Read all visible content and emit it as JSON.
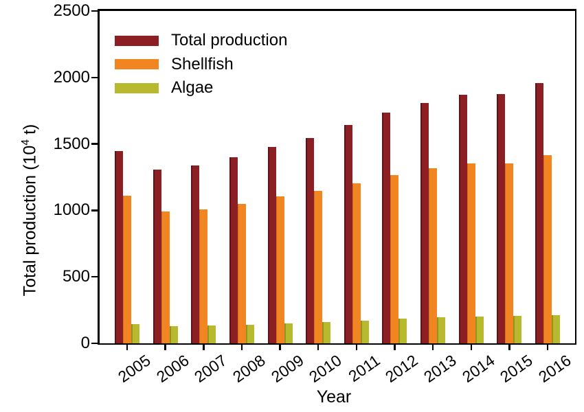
{
  "chart_data": {
    "type": "bar",
    "title": "",
    "xlabel": "Year",
    "ylabel": "Total production (10⁴ t)",
    "ylabel_parts": {
      "prefix": "Total production (10",
      "superscript": "4",
      "suffix": " t)"
    },
    "ylim": [
      0,
      2500
    ],
    "yticks": [
      "0",
      "500",
      "1000",
      "1500",
      "2000",
      "2500"
    ],
    "grid": false,
    "legend_position": "top-left-inside",
    "categories": [
      "2005",
      "2006",
      "2007",
      "2008",
      "2009",
      "2010",
      "2011",
      "2012",
      "2013",
      "2014",
      "2015",
      "2016"
    ],
    "series": [
      {
        "name": "Total production",
        "color": "#8B1F24",
        "values": [
          1445,
          1305,
          1340,
          1400,
          1475,
          1545,
          1640,
          1735,
          1810,
          1870,
          1873,
          1960
        ]
      },
      {
        "name": "Shellfish",
        "color": "#F18521",
        "values": [
          1110,
          992,
          1005,
          1048,
          1105,
          1148,
          1205,
          1265,
          1315,
          1352,
          1353,
          1415
        ]
      },
      {
        "name": "Algae",
        "color": "#B7BA2E",
        "values": [
          146,
          131,
          135,
          140,
          150,
          158,
          169,
          185,
          195,
          203,
          207,
          212
        ]
      }
    ]
  }
}
